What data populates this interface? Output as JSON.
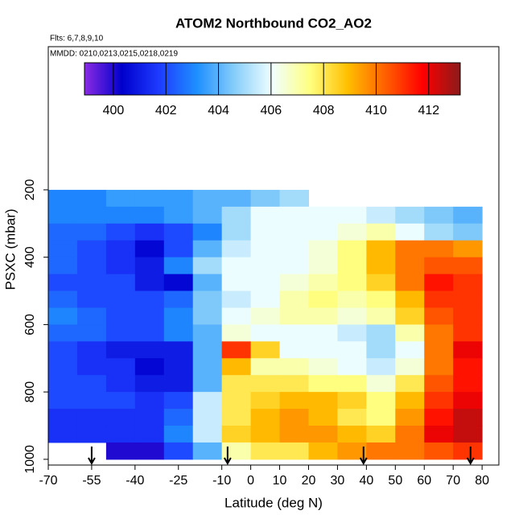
{
  "chart_data": {
    "type": "heatmap",
    "title": "ATOM2 Northbound CO2_AO2",
    "subtitle": "Flts: 6,7,8,9,10",
    "annotation": "MMDD: 0210,0213,0215,0218,0219",
    "xlabel": "Latitude (deg N)",
    "ylabel": "PSXC (mbar)",
    "xlim": [
      -70,
      85.8
    ],
    "xticks": [
      -70,
      -55,
      -40,
      -25,
      -10,
      0,
      10,
      20,
      30,
      40,
      50,
      60,
      70,
      80
    ],
    "ylim": [
      1017,
      -225
    ],
    "yticks": [
      200,
      400,
      600,
      800,
      1000
    ],
    "x_bins": [
      -70,
      -60,
      -50,
      -40,
      -30,
      -20,
      -10,
      0,
      10,
      20,
      30,
      40,
      50,
      60,
      70,
      80
    ],
    "y_bands": [
      200,
      250,
      300,
      350,
      400,
      450,
      500,
      550,
      600,
      650,
      700,
      750,
      800,
      850,
      900,
      950,
      1000
    ],
    "z": [
      [
        403,
        403,
        403.5,
        403.5,
        403.5,
        404,
        404,
        404.5,
        405,
        null,
        null,
        null,
        null,
        null,
        null
      ],
      [
        403,
        403,
        403,
        403,
        403.5,
        404,
        405,
        406,
        406,
        406,
        406,
        405.5,
        405,
        404.5,
        404
      ],
      [
        402.5,
        402.5,
        402,
        401.5,
        402,
        403,
        405,
        406,
        406,
        406,
        406.5,
        407,
        406,
        405,
        404.5
      ],
      [
        402.5,
        402,
        401.5,
        400.5,
        402,
        404,
        405.5,
        406,
        406,
        406.5,
        407.5,
        409,
        410,
        410,
        409.5
      ],
      [
        402.5,
        402,
        401.5,
        401,
        403,
        405,
        406,
        406,
        406,
        406.5,
        407.5,
        409,
        410,
        410.5,
        410.5
      ],
      [
        402,
        402,
        402,
        401,
        400.5,
        404,
        406,
        406,
        406.5,
        407,
        407.5,
        408.5,
        410,
        411.5,
        411
      ],
      [
        402.5,
        402,
        402,
        402,
        402.5,
        404.5,
        405.5,
        406,
        407,
        407.5,
        407,
        407.5,
        409,
        411,
        411
      ],
      [
        403,
        402.5,
        402,
        402,
        403,
        404.5,
        406,
        406.5,
        407,
        407,
        406.5,
        407,
        408.5,
        410.5,
        411
      ],
      [
        402.5,
        402.5,
        402,
        402,
        403,
        404,
        406.5,
        406,
        406,
        406,
        405.5,
        405,
        407,
        410,
        411
      ],
      [
        402,
        401.5,
        401,
        401,
        401,
        404,
        411,
        408.5,
        406,
        406,
        406,
        405,
        406,
        410,
        412
      ],
      [
        402,
        401.5,
        401.5,
        400.5,
        401,
        404,
        409,
        407,
        407,
        406.5,
        406,
        405.5,
        406.5,
        410,
        411.5
      ],
      [
        402,
        402,
        401.5,
        401,
        401,
        404,
        408,
        408,
        408,
        407.5,
        407.5,
        406.5,
        408,
        410.5,
        411.5
      ],
      [
        402,
        402,
        402,
        401.5,
        402,
        405.5,
        408,
        408.5,
        409,
        409,
        408.5,
        407.5,
        409,
        411,
        412
      ],
      [
        401.5,
        401.5,
        401.5,
        401.5,
        402.5,
        405.5,
        408,
        409,
        409.5,
        409,
        408,
        407.5,
        409.5,
        411.5,
        412.5
      ],
      [
        401.5,
        401.5,
        401.5,
        401.5,
        403,
        405.5,
        408.5,
        409,
        409.5,
        409.5,
        409,
        408.5,
        410,
        412,
        412.5
      ],
      [
        null,
        null,
        400,
        400,
        402,
        404,
        407,
        408,
        408,
        409,
        409.5,
        410,
        410,
        410.5,
        411
      ]
    ],
    "arrow_latitudes": [
      -55,
      -8,
      39,
      76
    ],
    "colorbar": {
      "lim": [
        398.9,
        413.2
      ],
      "ticks": [
        400,
        402,
        404,
        406,
        408,
        410,
        412
      ],
      "colors": [
        "#8a2be2",
        "#0000cd",
        "#1e3cff",
        "#1e90ff",
        "#87cefa",
        "#f0ffff",
        "#ffff80",
        "#ffc000",
        "#ff6000",
        "#ff0000",
        "#8b1a1a"
      ]
    }
  }
}
